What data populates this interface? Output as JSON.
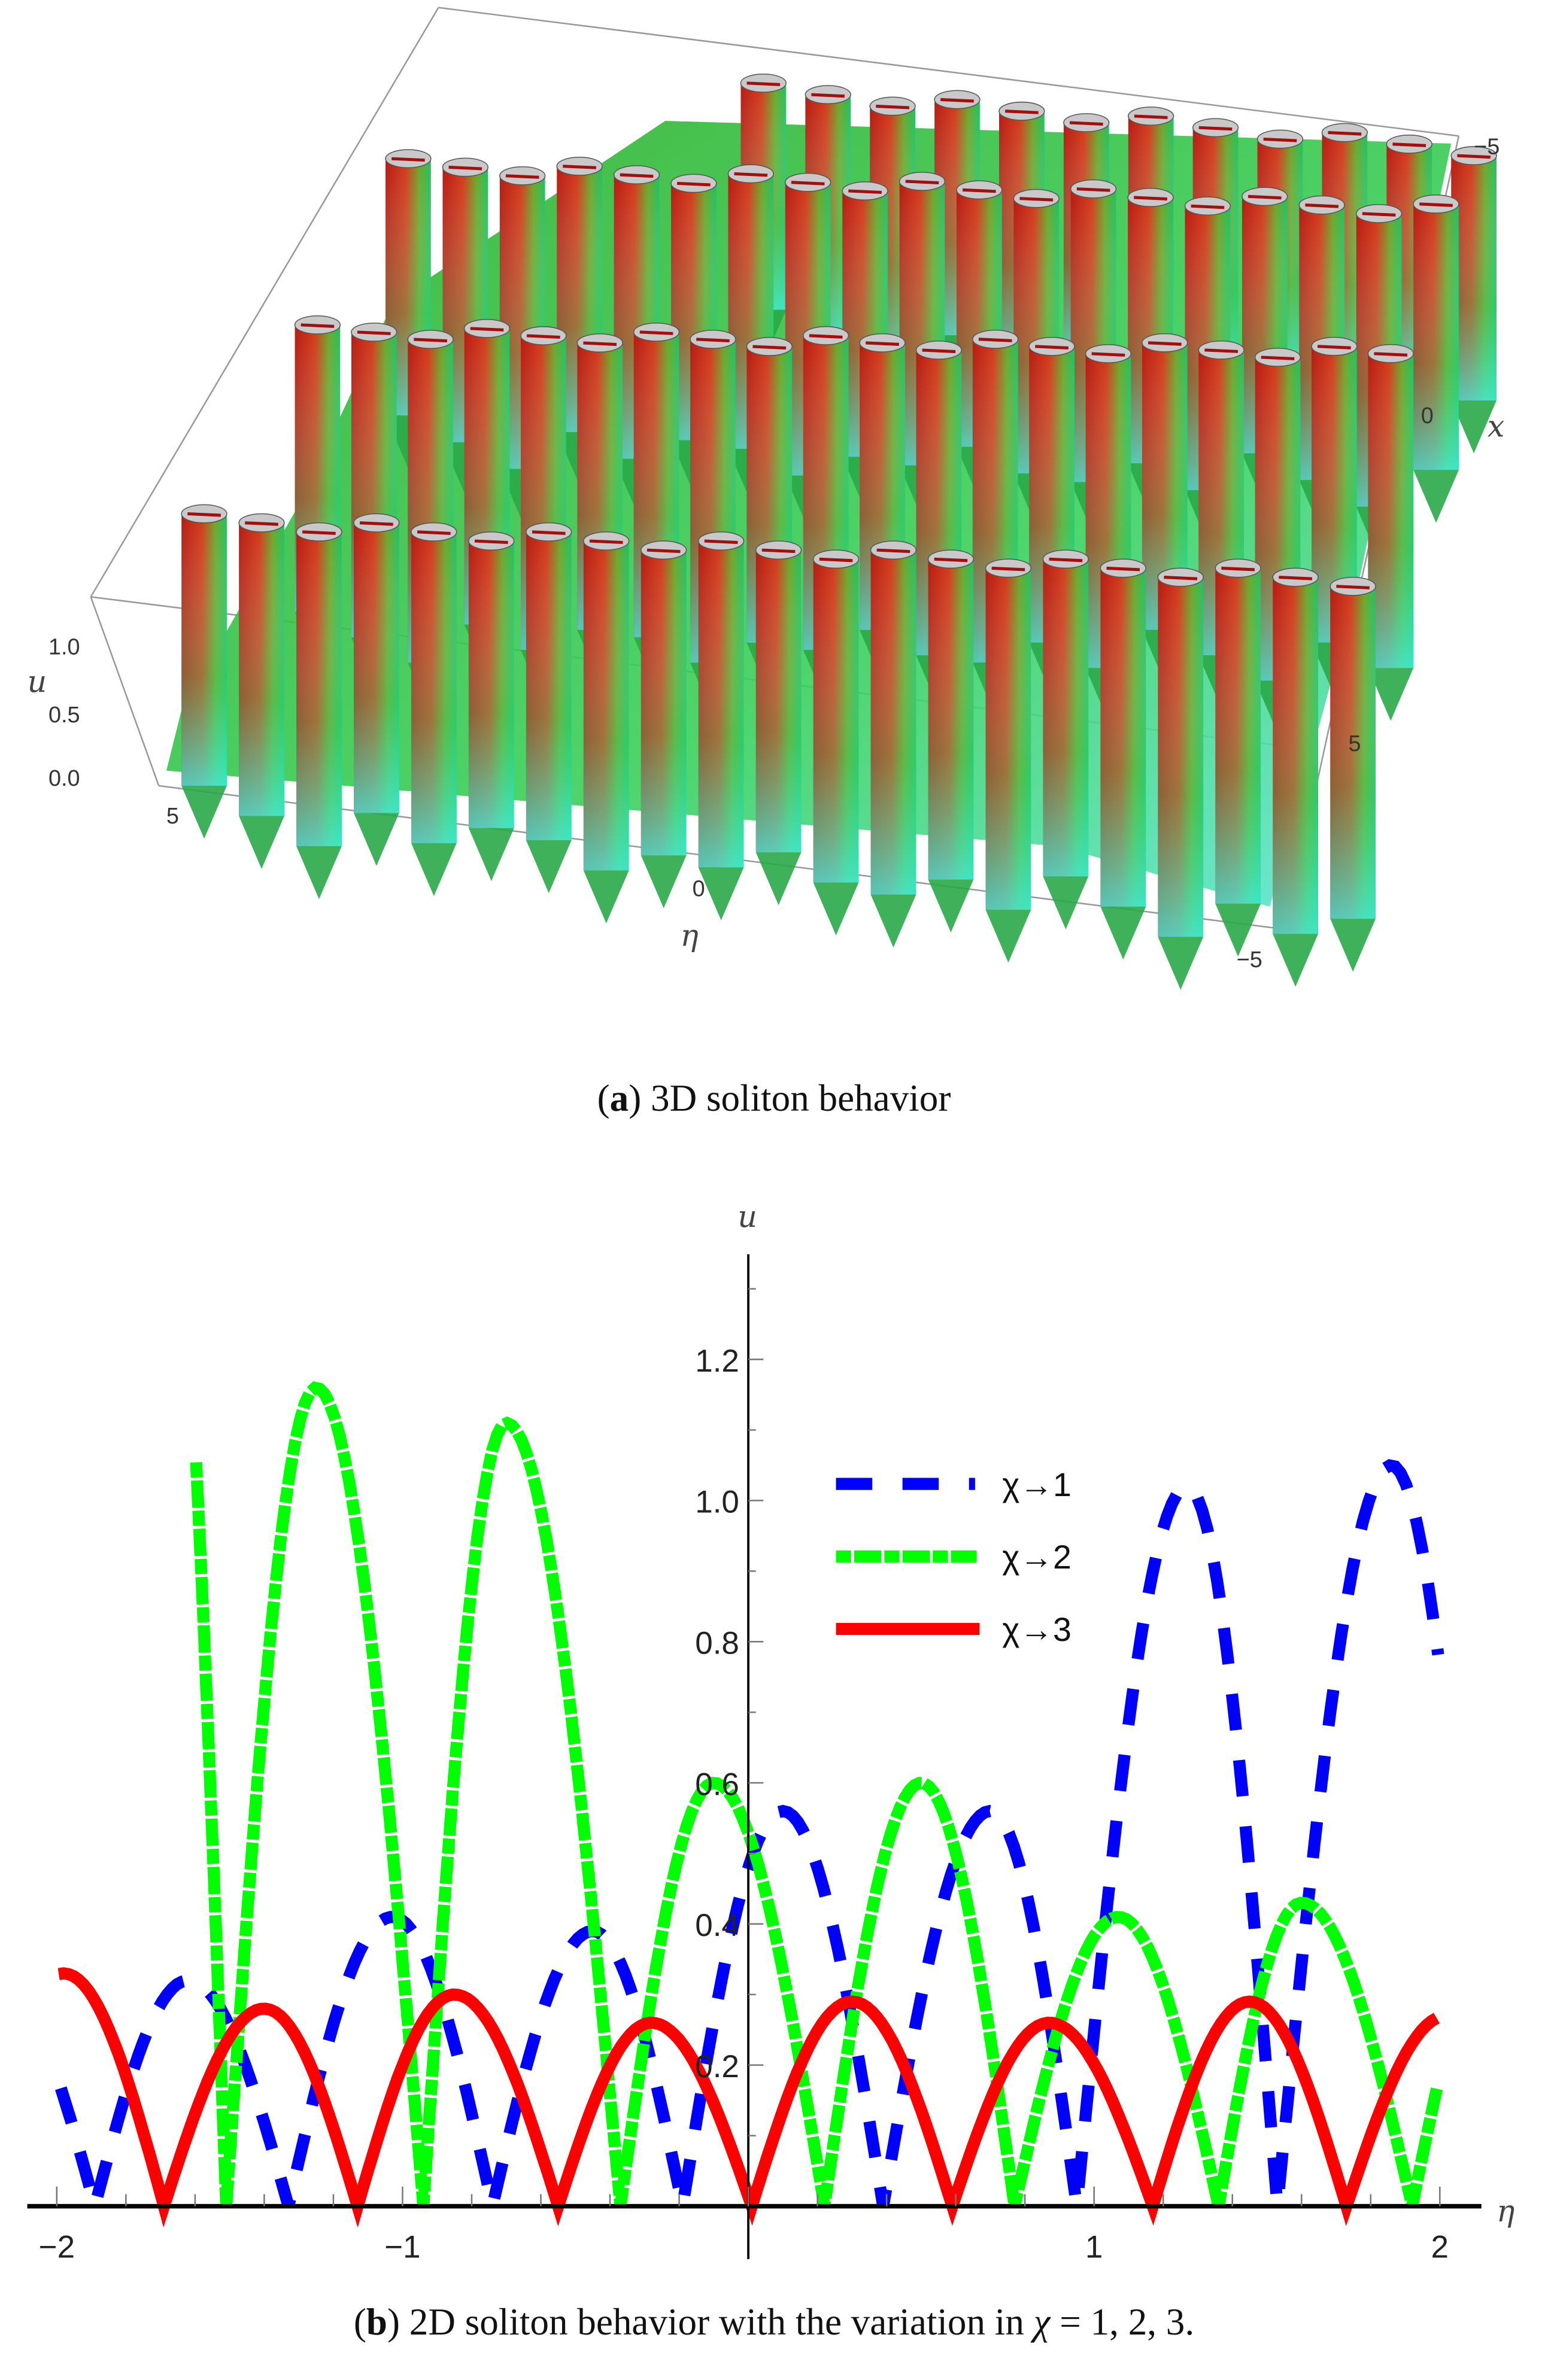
{
  "figure_a": {
    "caption_letter": "a",
    "caption_text": " 3D soliton behavior",
    "u_label": "u",
    "x_label": "x",
    "eta_label": "η",
    "u_ticks": [
      "0.0",
      "0.5",
      "1.0"
    ],
    "x_ticks": [
      "−5",
      "0",
      "5"
    ],
    "eta_ticks": [
      "5",
      "0",
      "−5"
    ]
  },
  "figure_b": {
    "caption_letter": "b",
    "caption_text": " 2D soliton behavior with the variation in ",
    "caption_chi": "χ",
    "caption_tail": " = 1, 2, 3."
  },
  "chart_data": {
    "type": "line",
    "title": "",
    "xlabel": "η",
    "ylabel": "u",
    "xlim": [
      -2.05,
      2.05
    ],
    "ylim": [
      0,
      1.32
    ],
    "x_ticks": [
      -2,
      -1,
      1,
      2
    ],
    "x_tick_labels": [
      "−2",
      "−1",
      "1",
      "2"
    ],
    "y_ticks": [
      0.2,
      0.4,
      0.6,
      0.8,
      1.0,
      1.2
    ],
    "y_tick_labels": [
      "0.2",
      "0.4",
      "0.6",
      "0.8",
      "1.0",
      "1.2"
    ],
    "grid": false,
    "legend_position": "top-right",
    "series": [
      {
        "name": "χ→1",
        "color": "#0000ff",
        "style": "dashed",
        "domain": [
          -2,
          2
        ],
        "arches": [
          [
            -2.45,
            -2.17,
            0.32,
            -1.89
          ],
          [
            -1.89,
            -1.62,
            0.32,
            -1.33
          ],
          [
            -1.33,
            -1.03,
            0.41,
            -0.74
          ],
          [
            -0.74,
            -0.45,
            0.39,
            -0.19
          ],
          [
            -0.19,
            0.1,
            0.56,
            0.39
          ],
          [
            0.39,
            0.7,
            0.56,
            0.95
          ],
          [
            0.95,
            1.27,
            1.02,
            1.53
          ],
          [
            1.53,
            1.86,
            1.05,
            2.15
          ]
        ]
      },
      {
        "name": "χ→2",
        "color": "#00ff00",
        "style": "dashdot",
        "domain": [
          -1.6,
          2
        ],
        "arches": [
          [
            -1.8,
            -1.7,
            1.6,
            -1.51
          ],
          [
            -1.51,
            -1.25,
            1.16,
            -0.94
          ],
          [
            -0.94,
            -0.7,
            1.11,
            -0.37
          ],
          [
            -0.37,
            -0.1,
            0.6,
            0.22
          ],
          [
            0.22,
            0.5,
            0.6,
            0.77
          ],
          [
            0.77,
            1.07,
            0.41,
            1.36
          ],
          [
            1.36,
            1.6,
            0.43,
            1.92
          ],
          [
            1.92,
            2.2,
            0.43,
            2.5
          ]
        ]
      },
      {
        "name": "χ→3",
        "color": "#ff0000",
        "style": "solid",
        "domain": [
          -2,
          2
        ],
        "arches": [
          [
            -2.27,
            -1.98,
            0.33,
            -1.69
          ],
          [
            -1.69,
            -1.4,
            0.28,
            -1.13
          ],
          [
            -1.13,
            -0.85,
            0.3,
            -0.55
          ],
          [
            -0.55,
            -0.28,
            0.26,
            0.01
          ],
          [
            0.01,
            0.3,
            0.29,
            0.59
          ],
          [
            0.59,
            0.87,
            0.26,
            1.17
          ],
          [
            1.17,
            1.45,
            0.29,
            1.73
          ],
          [
            1.73,
            2.02,
            0.27,
            2.31
          ]
        ]
      }
    ]
  }
}
